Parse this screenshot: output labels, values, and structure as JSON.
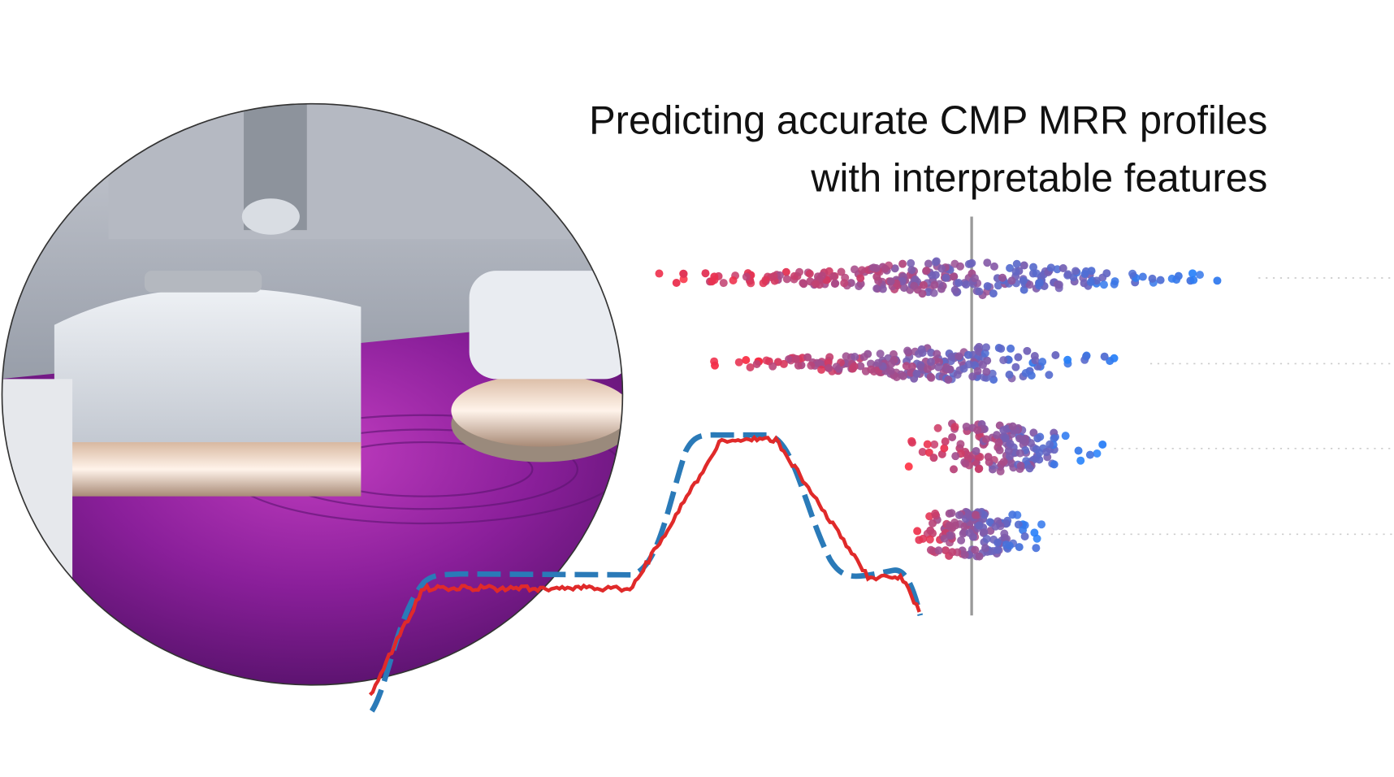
{
  "title": {
    "lines": [
      "Predicting accurate CMP MRR profiles",
      "with interpretable features"
    ]
  }
}
